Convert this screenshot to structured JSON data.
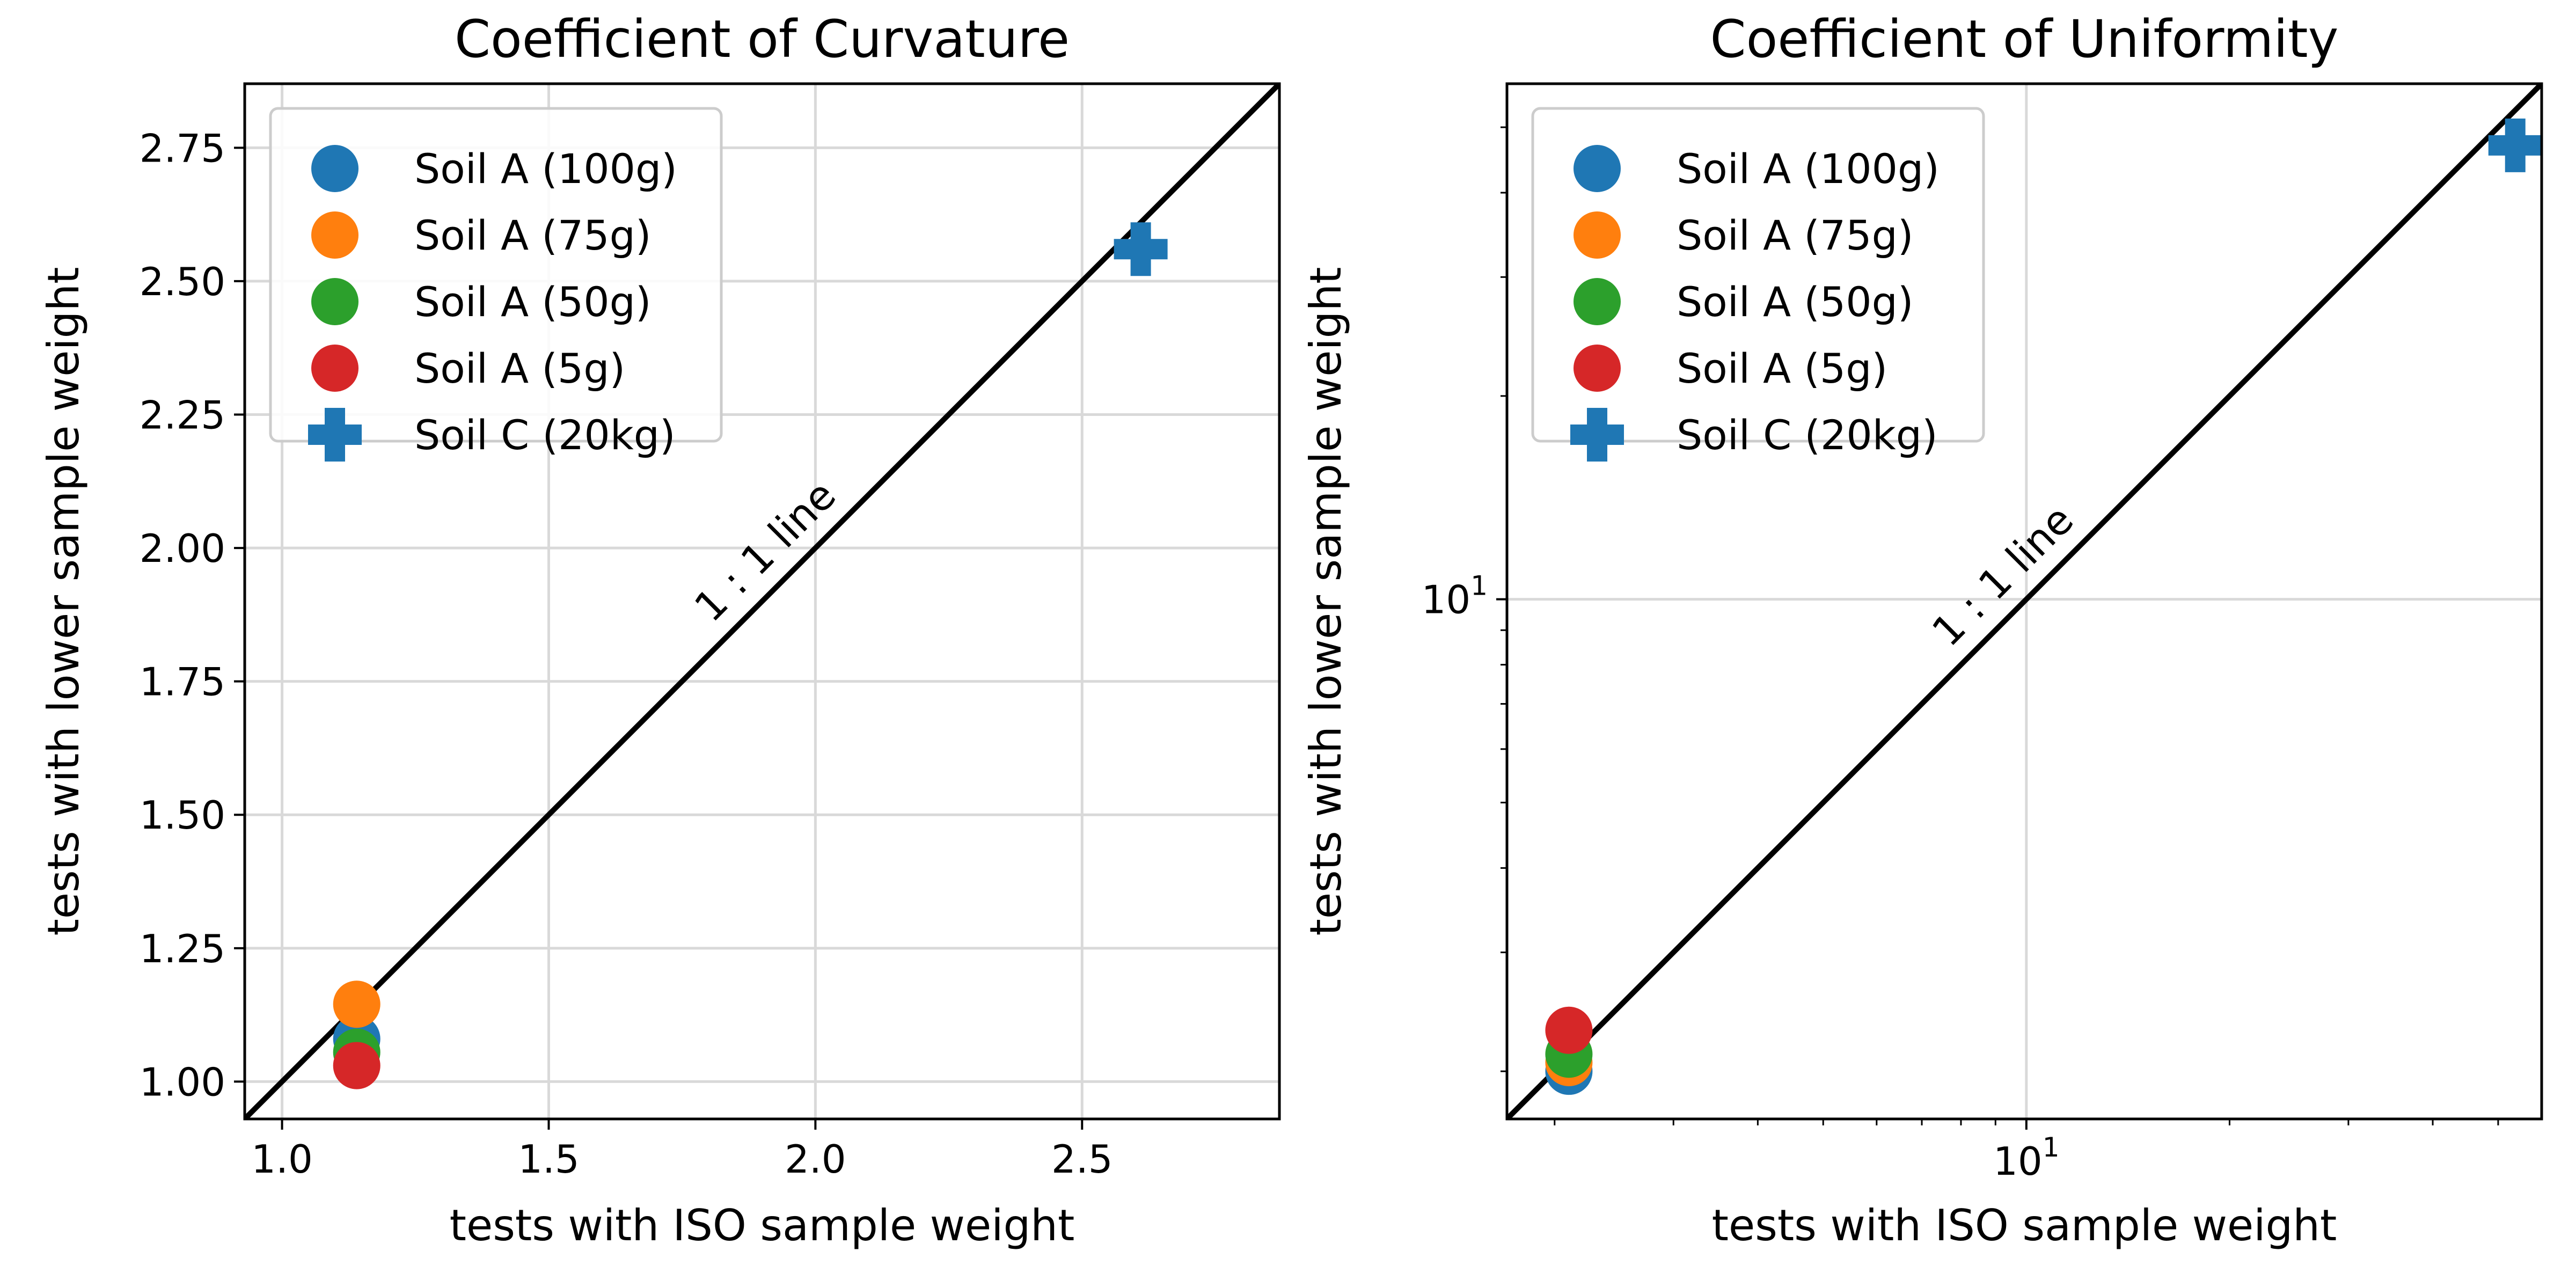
{
  "chart_data": [
    {
      "type": "scatter",
      "title": "Coefficient of Curvature",
      "xlabel": "tests with ISO sample weight",
      "ylabel": "tests with lower sample weight",
      "xlim": [
        0.93,
        2.87
      ],
      "ylim": [
        0.93,
        2.87
      ],
      "x_ticks": [
        1.0,
        1.5,
        2.0,
        2.5
      ],
      "x_tick_labels": [
        "1.0",
        "1.5",
        "2.0",
        "2.5"
      ],
      "y_ticks": [
        1.0,
        1.25,
        1.5,
        1.75,
        2.0,
        2.25,
        2.5,
        2.75
      ],
      "y_tick_labels": [
        "1.00",
        "1.25",
        "1.50",
        "1.75",
        "2.00",
        "2.25",
        "2.50",
        "2.75"
      ],
      "grid": true,
      "legend_position": "top-left",
      "series": [
        {
          "name": "Soil A (100g)",
          "marker": "circle",
          "color": "#1f77b4",
          "points": [
            [
              1.14,
              1.08
            ]
          ]
        },
        {
          "name": "Soil A (75g)",
          "marker": "circle",
          "color": "#ff7f0e",
          "points": [
            [
              1.14,
              1.145
            ]
          ]
        },
        {
          "name": "Soil A (50g)",
          "marker": "circle",
          "color": "#2ca02c",
          "points": [
            [
              1.14,
              1.055
            ]
          ]
        },
        {
          "name": "Soil A (5g)",
          "marker": "circle",
          "color": "#d62728",
          "points": [
            [
              1.14,
              1.03
            ]
          ]
        },
        {
          "name": "Soil C (20kg)",
          "marker": "plus",
          "color": "#1f77b4",
          "points": [
            [
              2.61,
              2.56
            ]
          ]
        }
      ],
      "reference_line": {
        "label": "1 : 1 line",
        "slope": 1
      },
      "annotation_anchor": [
        1.95,
        1.95
      ]
    },
    {
      "type": "scatter",
      "title": "Coefficient of Uniformity",
      "xlabel": "tests with ISO sample weight",
      "ylabel": "tests with lower sample weight",
      "xscale": "log",
      "yscale": "log",
      "xlim": [
        1.7,
        58
      ],
      "ylim": [
        1.7,
        58
      ],
      "major_ticks": [
        10
      ],
      "major_tick_label_base": "10",
      "major_tick_label_exp": "1",
      "grid": true,
      "legend_position": "top-left",
      "series": [
        {
          "name": "Soil A (100g)",
          "marker": "circle",
          "color": "#1f77b4",
          "points": [
            [
              2.1,
              2.0
            ]
          ]
        },
        {
          "name": "Soil A (75g)",
          "marker": "circle",
          "color": "#ff7f0e",
          "points": [
            [
              2.1,
              2.06
            ]
          ]
        },
        {
          "name": "Soil A (50g)",
          "marker": "circle",
          "color": "#2ca02c",
          "points": [
            [
              2.1,
              2.12
            ]
          ]
        },
        {
          "name": "Soil A (5g)",
          "marker": "circle",
          "color": "#d62728",
          "points": [
            [
              2.1,
              2.3
            ]
          ]
        },
        {
          "name": "Soil C (20kg)",
          "marker": "plus",
          "color": "#1f77b4",
          "points": [
            [
              53,
              47
            ]
          ]
        }
      ],
      "reference_line": {
        "label": "1 : 1 line",
        "slope": 1
      },
      "annotation_anchor": [
        10,
        10
      ]
    }
  ]
}
